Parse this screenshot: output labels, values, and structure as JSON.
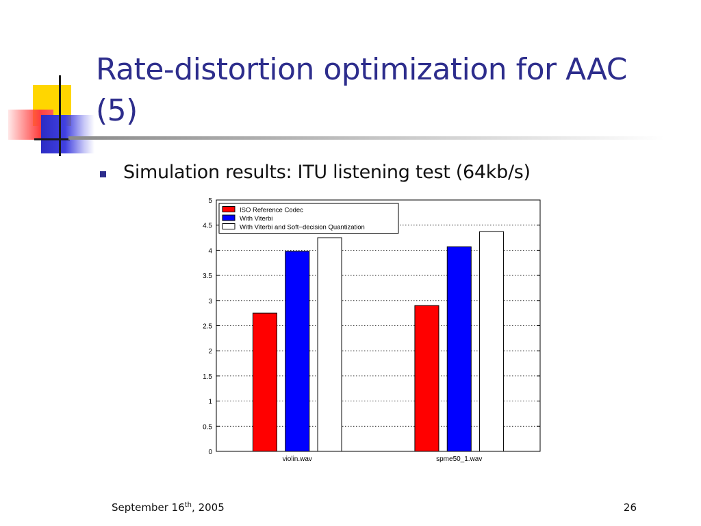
{
  "slide": {
    "title": "Rate-distortion optimization for AAC (5)",
    "bullet": "Simulation results: ITU listening test (64kb/s)",
    "footer_date_main": "September 16",
    "footer_date_sup": "th",
    "footer_date_tail": ", 2005",
    "page_number": "26"
  },
  "colors": {
    "title": "#2d2d8c",
    "bullet": "#2d2d8c",
    "deco_yellow": "#ffd600",
    "deco_red": "#ff4040",
    "deco_blue": "#3030d0"
  },
  "chart_data": {
    "type": "bar",
    "categories": [
      "violin.wav",
      "spme50_1.wav"
    ],
    "series": [
      {
        "name": "ISO Reference Codec",
        "values": [
          2.75,
          2.9
        ],
        "color": "#ff0000"
      },
      {
        "name": "With Viterbi",
        "values": [
          3.98,
          4.07
        ],
        "color": "#0000ff"
      },
      {
        "name": "With Viterbi and Soft−decision Quantization",
        "values": [
          4.25,
          4.37
        ],
        "color": "#ffffff"
      }
    ],
    "title": "",
    "xlabel": "",
    "ylabel": "",
    "ylim": [
      0,
      5
    ],
    "yticks": [
      "0",
      "0.5",
      "1",
      "1.5",
      "2",
      "2.5",
      "3",
      "3.5",
      "4",
      "4.5",
      "5"
    ],
    "grid": "horizontal dotted",
    "legend": "top-left"
  }
}
